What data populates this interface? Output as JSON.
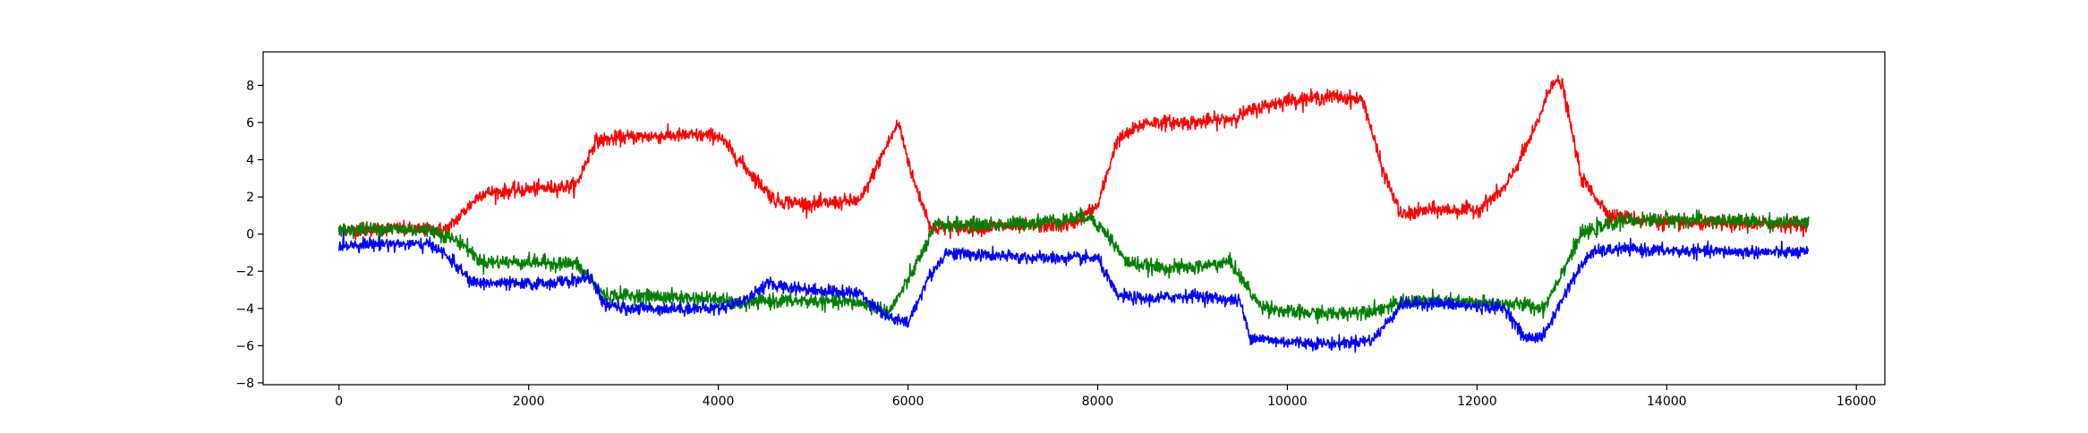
{
  "chart_data": {
    "type": "line",
    "title": "",
    "xlabel": "",
    "ylabel": "",
    "xlim": [
      -800,
      16300
    ],
    "ylim": [
      -8.1,
      9.8
    ],
    "x_ticks": [
      0,
      2000,
      4000,
      6000,
      8000,
      10000,
      12000,
      14000,
      16000
    ],
    "x_tick_labels": [
      "0",
      "2000",
      "4000",
      "6000",
      "8000",
      "10000",
      "12000",
      "14000",
      "16000"
    ],
    "y_ticks": [
      -8,
      -6,
      -4,
      -2,
      0,
      2,
      4,
      6,
      8
    ],
    "y_tick_labels": [
      "−8",
      "−6",
      "−4",
      "−2",
      "0",
      "2",
      "4",
      "6",
      "8"
    ],
    "grid": false,
    "legend": "none",
    "noise_note": "each series is a dense noisy signal; values below trace its central level",
    "series": [
      {
        "color": "#ff0000",
        "noise_amplitude": 0.35,
        "x": [
          0,
          500,
          1000,
          1150,
          1500,
          2000,
          2500,
          2700,
          3000,
          3500,
          4000,
          4300,
          4600,
          5000,
          5500,
          5750,
          5900,
          6050,
          6250,
          7000,
          7700,
          8000,
          8200,
          8500,
          9000,
          9400,
          9700,
          10000,
          10500,
          10800,
          11000,
          11200,
          11500,
          12000,
          12300,
          12600,
          12800,
          12900,
          13100,
          13400,
          14000,
          15500
        ],
        "y": [
          0.2,
          0.3,
          0.2,
          0.3,
          2.2,
          2.4,
          2.6,
          5.0,
          5.2,
          5.3,
          5.3,
          3.5,
          1.8,
          1.6,
          1.8,
          4.5,
          6.0,
          3.0,
          0.3,
          0.4,
          0.5,
          1.5,
          5.0,
          6.0,
          6.0,
          6.2,
          6.8,
          7.2,
          7.4,
          7.2,
          3.5,
          1.0,
          1.3,
          1.3,
          2.5,
          5.5,
          8.3,
          8.0,
          3.0,
          1.0,
          0.6,
          0.5
        ]
      },
      {
        "color": "#008000",
        "noise_amplitude": 0.35,
        "x": [
          0,
          500,
          1000,
          1300,
          1500,
          2000,
          2500,
          2800,
          3000,
          3500,
          4000,
          4200,
          4500,
          5000,
          5500,
          5800,
          6000,
          6300,
          7000,
          7700,
          7900,
          8100,
          8300,
          8600,
          9000,
          9400,
          9700,
          10000,
          10500,
          11000,
          11300,
          11500,
          12000,
          12500,
          12700,
          12900,
          13100,
          13500,
          14000,
          15500
        ],
        "y": [
          0.2,
          0.3,
          0.2,
          -0.5,
          -1.5,
          -1.5,
          -1.6,
          -3.3,
          -3.3,
          -3.4,
          -3.5,
          -3.8,
          -3.6,
          -3.6,
          -3.7,
          -4.2,
          -2.5,
          0.5,
          0.5,
          0.8,
          1.0,
          0.0,
          -1.5,
          -1.8,
          -1.8,
          -1.5,
          -3.8,
          -4.2,
          -4.3,
          -4.0,
          -3.6,
          -3.6,
          -3.7,
          -3.8,
          -4.0,
          -2.0,
          0.0,
          0.7,
          0.8,
          0.6
        ]
      },
      {
        "color": "#0000ff",
        "noise_amplitude": 0.3,
        "x": [
          0,
          500,
          1000,
          1200,
          1400,
          2000,
          2500,
          2650,
          2800,
          3000,
          3500,
          4000,
          4300,
          4500,
          5000,
          5500,
          5800,
          6000,
          6200,
          6400,
          7000,
          7500,
          8000,
          8200,
          8500,
          9000,
          9500,
          9600,
          9800,
          10000,
          10500,
          10900,
          11200,
          11500,
          12000,
          12300,
          12500,
          12700,
          13000,
          13200,
          13500,
          14000,
          15500
        ],
        "y": [
          -0.6,
          -0.5,
          -0.6,
          -1.5,
          -2.6,
          -2.7,
          -2.5,
          -2.3,
          -3.8,
          -4.0,
          -4.0,
          -4.0,
          -3.5,
          -2.7,
          -3.0,
          -3.2,
          -4.5,
          -4.8,
          -2.5,
          -1.0,
          -1.2,
          -1.3,
          -1.3,
          -3.3,
          -3.5,
          -3.3,
          -3.6,
          -5.5,
          -5.7,
          -5.8,
          -5.9,
          -5.7,
          -3.8,
          -3.7,
          -3.9,
          -4.0,
          -5.6,
          -5.5,
          -2.5,
          -1.0,
          -0.8,
          -0.9,
          -1.0
        ]
      }
    ]
  }
}
